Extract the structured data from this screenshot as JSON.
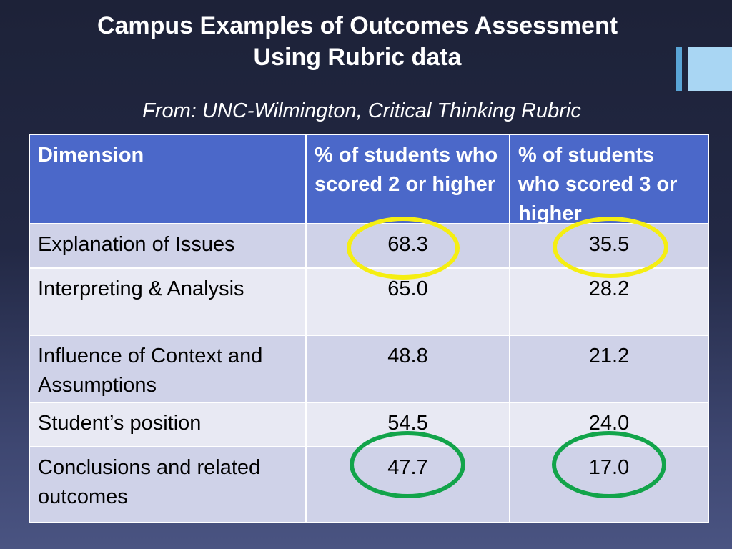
{
  "slide": {
    "title_line1": "Campus Examples of Outcomes Assessment",
    "title_line2": "Using Rubric data",
    "subtitle": "From: UNC-Wilmington, Critical Thinking Rubric"
  },
  "table": {
    "headers": [
      "Dimension",
      "% of students who scored 2 or higher",
      "% of students who scored 3 or higher"
    ],
    "rows": [
      [
        "Explanation of Issues",
        "68.3",
        "35.5"
      ],
      [
        "Interpreting & Analysis",
        "65.0",
        "28.2"
      ],
      [
        "Influence of Context and Assumptions",
        "48.8",
        "21.2"
      ],
      [
        "Student’s position",
        "54.5",
        "24.0"
      ],
      [
        "Conclusions and related outcomes",
        "47.7",
        "17.0"
      ]
    ]
  },
  "highlights": {
    "top_row_circle_color": "#f5ee12",
    "bottom_row_circle_color": "#12a44a"
  },
  "colors": {
    "header_background": "#4b68c9",
    "row_odd": "#cfd2e8",
    "row_even": "#e8e9f3",
    "accent_light": "#a9d6f3",
    "accent_dark": "#5aa5d6"
  }
}
